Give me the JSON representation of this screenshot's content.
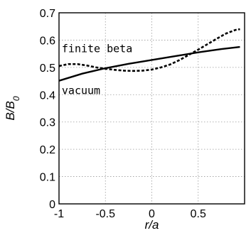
{
  "chart_data": {
    "type": "line",
    "xlabel": "r/a",
    "ylabel": "B/B0",
    "xlim": [
      -1,
      1
    ],
    "ylim": [
      0,
      0.7
    ],
    "xticks": [
      -1,
      -0.5,
      0,
      0.5
    ],
    "xtick_labels": [
      "-1",
      "-0.5",
      "0",
      "0.5"
    ],
    "yticks": [
      0,
      0.1,
      0.2,
      0.3,
      0.4,
      0.5,
      0.6,
      0.7
    ],
    "ytick_labels": [
      "0",
      "0.1",
      "0.2",
      "0.3",
      "0.4",
      "0.5",
      "0.6",
      "0.7"
    ],
    "grid": true,
    "legend": "none",
    "series": [
      {
        "name": "finite beta",
        "style": "dashed",
        "color": "#000000",
        "x": [
          -1,
          -0.9,
          -0.8,
          -0.7,
          -0.6,
          -0.5,
          -0.4,
          -0.3,
          -0.2,
          -0.1,
          0,
          0.1,
          0.2,
          0.3,
          0.4,
          0.5,
          0.6,
          0.7,
          0.8,
          0.9,
          0.95
        ],
        "y": [
          0.505,
          0.512,
          0.512,
          0.507,
          0.5,
          0.495,
          0.491,
          0.488,
          0.487,
          0.488,
          0.492,
          0.5,
          0.511,
          0.527,
          0.546,
          0.565,
          0.585,
          0.605,
          0.624,
          0.637,
          0.64
        ]
      },
      {
        "name": "vacuum",
        "style": "solid",
        "color": "#000000",
        "x": [
          -1,
          -0.75,
          -0.5,
          -0.25,
          0,
          0.25,
          0.5,
          0.75,
          0.95
        ],
        "y": [
          0.451,
          0.477,
          0.497,
          0.513,
          0.527,
          0.541,
          0.555,
          0.567,
          0.575
        ]
      }
    ],
    "annotations": [
      {
        "text": "finite beta",
        "x": -0.97,
        "y": 0.555
      },
      {
        "text": "vacuum",
        "x": -0.97,
        "y": 0.402
      }
    ]
  }
}
